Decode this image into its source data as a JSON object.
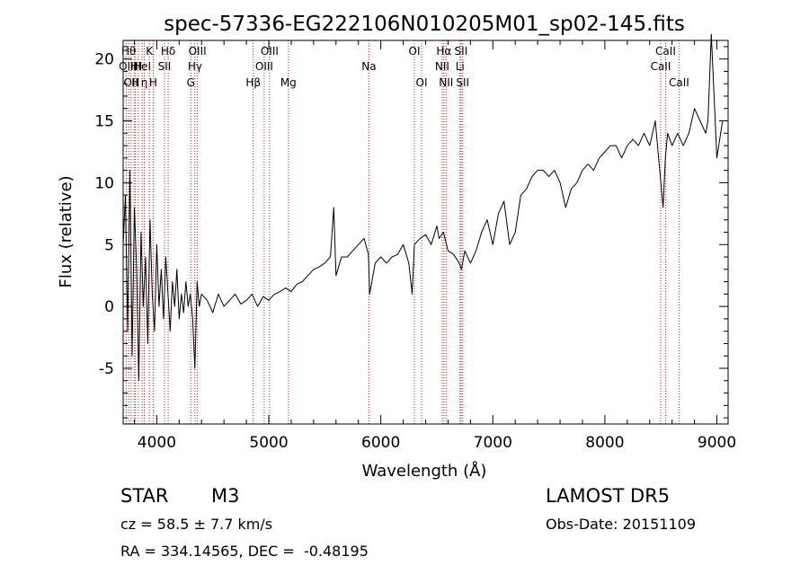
{
  "chart_data": {
    "type": "line",
    "title": "spec-57336-EG222106N010205M01_sp02-145.fits",
    "xlabel": "Wavelength (Å)",
    "ylabel": "Flux (relative)",
    "xlim": [
      3700,
      9100
    ],
    "ylim": [
      -9.5,
      21.5
    ],
    "x_ticks": [
      4000,
      5000,
      6000,
      7000,
      8000,
      9000
    ],
    "y_ticks": [
      -5,
      0,
      5,
      10,
      15,
      20
    ],
    "grid": false,
    "legend": "none",
    "line_color": "#000000",
    "marker_line_color": "#b22222",
    "series": [
      {
        "x": [
          3700,
          3720,
          3740,
          3760,
          3780,
          3800,
          3820,
          3840,
          3860,
          3880,
          3900,
          3920,
          3940,
          3960,
          3980,
          4000,
          4020,
          4040,
          4060,
          4080,
          4100,
          4120,
          4140,
          4160,
          4180,
          4200,
          4220,
          4240,
          4260,
          4280,
          4300,
          4320,
          4340,
          4360,
          4380,
          4400,
          4450,
          4500,
          4550,
          4600,
          4650,
          4700,
          4750,
          4800,
          4850,
          4900,
          4950,
          5000,
          5050,
          5100,
          5150,
          5200,
          5250,
          5300,
          5350,
          5400,
          5450,
          5500,
          5550,
          5580,
          5600,
          5650,
          5700,
          5750,
          5800,
          5850,
          5890,
          5900,
          5920,
          5950,
          6000,
          6050,
          6100,
          6150,
          6200,
          6250,
          6280,
          6300,
          6350,
          6400,
          6450,
          6500,
          6520,
          6560,
          6600,
          6650,
          6700,
          6720,
          6750,
          6800,
          6850,
          6900,
          6950,
          7000,
          7050,
          7100,
          7150,
          7200,
          7250,
          7300,
          7350,
          7400,
          7450,
          7500,
          7550,
          7600,
          7650,
          7700,
          7750,
          7800,
          7850,
          7900,
          7950,
          8000,
          8050,
          8100,
          8150,
          8200,
          8250,
          8300,
          8350,
          8400,
          8450,
          8480,
          8500,
          8520,
          8540,
          8560,
          8600,
          8650,
          8700,
          8750,
          8800,
          8850,
          8900,
          8920,
          8950,
          9000,
          9050,
          9100
        ],
        "y": [
          5,
          9,
          -2,
          11,
          -4,
          8,
          3,
          -6,
          6,
          0,
          4,
          -3,
          7,
          1,
          -2,
          5,
          0,
          3,
          -1,
          4,
          1,
          -2,
          2,
          0,
          3,
          -1,
          1,
          -0.5,
          2,
          0,
          1,
          -1,
          -5,
          2,
          0,
          1,
          0.5,
          -0.5,
          1,
          0,
          0.5,
          1,
          0.2,
          0.5,
          1,
          0,
          0.8,
          0.5,
          1,
          1.2,
          1.5,
          1.2,
          1.8,
          2,
          2.5,
          3,
          3.2,
          3.5,
          4,
          8,
          2.5,
          4,
          4,
          4.5,
          5,
          5.5,
          4.2,
          1,
          2,
          3.5,
          4,
          3.5,
          4,
          4.2,
          5,
          3.5,
          1,
          5,
          5.5,
          5.8,
          5,
          6.5,
          5.5,
          6,
          4.5,
          4.2,
          3.5,
          3,
          4.5,
          3.5,
          4.5,
          6,
          7,
          5,
          7.5,
          8.5,
          5,
          6,
          9,
          9.5,
          10.5,
          11,
          11,
          10.5,
          11,
          10,
          8,
          9.5,
          10,
          11,
          11.5,
          11,
          12,
          12.5,
          13,
          13,
          12,
          13,
          13.5,
          13,
          14,
          13,
          15,
          12,
          10,
          8,
          12,
          14,
          13,
          14,
          13,
          14,
          16,
          15,
          14,
          15,
          22,
          12,
          15,
          15
        ]
      }
    ],
    "lines": [
      {
        "x": 3727,
        "label": "OII",
        "row": 2
      },
      {
        "x": 3750,
        "label": "Hθ",
        "row": 1
      },
      {
        "x": 3770,
        "label": "OII",
        "row": 3
      },
      {
        "x": 3798,
        "label": "H",
        "row": 2
      },
      {
        "x": 3810,
        "label": "H",
        "row": 3
      },
      {
        "x": 3835,
        "label": "H",
        "row": 2
      },
      {
        "x": 3869,
        "label": "HeI",
        "row": 2
      },
      {
        "x": 3889,
        "label": "η",
        "row": 3
      },
      {
        "x": 3934,
        "label": "K",
        "row": 1
      },
      {
        "x": 3968,
        "label": "H",
        "row": 3
      },
      {
        "x": 4069,
        "label": "SII",
        "row": 2
      },
      {
        "x": 4102,
        "label": "Hδ",
        "row": 1
      },
      {
        "x": 4304,
        "label": "G",
        "row": 3
      },
      {
        "x": 4341,
        "label": "Hγ",
        "row": 2
      },
      {
        "x": 4363,
        "label": "OIII",
        "row": 1
      },
      {
        "x": 4861,
        "label": "Hβ",
        "row": 3
      },
      {
        "x": 4959,
        "label": "OIII",
        "row": 2
      },
      {
        "x": 5007,
        "label": "OIII",
        "row": 1
      },
      {
        "x": 5175,
        "label": "Mg",
        "row": 3
      },
      {
        "x": 5894,
        "label": "Na",
        "row": 2
      },
      {
        "x": 6300,
        "label": "OI",
        "row": 1
      },
      {
        "x": 6364,
        "label": "OI",
        "row": 3
      },
      {
        "x": 6548,
        "label": "NII",
        "row": 2
      },
      {
        "x": 6563,
        "label": "Hα",
        "row": 1
      },
      {
        "x": 6583,
        "label": "NII",
        "row": 3
      },
      {
        "x": 6707,
        "label": "Li",
        "row": 2
      },
      {
        "x": 6716,
        "label": "SII",
        "row": 1
      },
      {
        "x": 6731,
        "label": "SII",
        "row": 3
      },
      {
        "x": 8498,
        "label": "CaII",
        "row": 2
      },
      {
        "x": 8542,
        "label": "CaII",
        "row": 1
      },
      {
        "x": 8662,
        "label": "CaII",
        "row": 3
      }
    ]
  },
  "info": {
    "class_label": "STAR",
    "subclass": "M3",
    "survey": "LAMOST DR5",
    "cz": "cz = 58.5 ± 7.7 km/s",
    "obs_date": "Obs-Date: 20151109",
    "coords": "RA = 334.14565, DEC =  -0.48195"
  }
}
